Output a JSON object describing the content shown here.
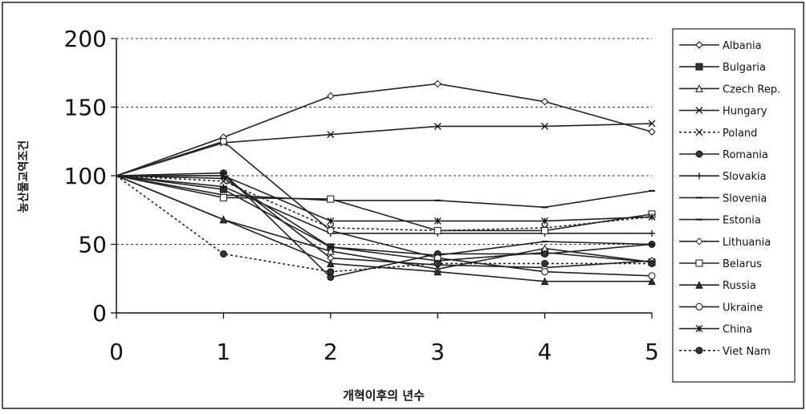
{
  "chart_data": {
    "type": "line",
    "xlabel": "개혁이후의 년수",
    "ylabel": "농산물교역조건",
    "x": [
      0,
      1,
      2,
      3,
      4,
      5
    ],
    "xlim": [
      0,
      5
    ],
    "ylim": [
      0,
      200
    ],
    "yticks": [
      0,
      50,
      100,
      150,
      200
    ],
    "xticks": [
      0,
      1,
      2,
      3,
      4,
      5
    ],
    "grid": "horizontal dashed",
    "legend_position": "right",
    "series": [
      {
        "name": "Albania",
        "values": [
          100,
          128,
          158,
          167,
          154,
          132
        ],
        "marker": "diamond",
        "dash": false
      },
      {
        "name": "Bulgaria",
        "values": [
          100,
          90,
          48,
          38,
          44,
          37
        ],
        "marker": "square-filled",
        "dash": false
      },
      {
        "name": "Czech Rep.",
        "values": [
          100,
          68,
          45,
          32,
          47,
          37
        ],
        "marker": "triangle",
        "dash": false
      },
      {
        "name": "Hungary",
        "values": [
          100,
          124,
          130,
          136,
          136,
          138
        ],
        "marker": "x",
        "dash": false
      },
      {
        "name": "Poland",
        "values": [
          100,
          96,
          62,
          60,
          62,
          70
        ],
        "marker": "x",
        "dash": true
      },
      {
        "name": "Romania",
        "values": [
          100,
          102,
          26,
          43,
          43,
          50
        ],
        "marker": "circle-filled",
        "dash": false
      },
      {
        "name": "Slovakia",
        "values": [
          100,
          92,
          58,
          58,
          58,
          58
        ],
        "marker": "plus",
        "dash": false
      },
      {
        "name": "Slovenia",
        "values": [
          100,
          86,
          82,
          82,
          77,
          89
        ],
        "marker": "dash",
        "dash": false
      },
      {
        "name": "Estonia",
        "values": [
          100,
          98,
          48,
          42,
          52,
          50
        ],
        "marker": "dash",
        "dash": false
      },
      {
        "name": "Lithuania",
        "values": [
          100,
          100,
          40,
          35,
          33,
          38
        ],
        "marker": "diamond",
        "dash": false
      },
      {
        "name": "Belarus",
        "values": [
          100,
          84,
          83,
          60,
          60,
          72
        ],
        "marker": "square",
        "dash": false
      },
      {
        "name": "Russia",
        "values": [
          100,
          68,
          36,
          30,
          23,
          23
        ],
        "marker": "triangle-filled",
        "dash": false
      },
      {
        "name": "Ukraine",
        "values": [
          100,
          125,
          60,
          40,
          30,
          27
        ],
        "marker": "circle",
        "dash": false
      },
      {
        "name": "China",
        "values": [
          100,
          100,
          67,
          67,
          67,
          70
        ],
        "marker": "asterisk",
        "dash": false
      },
      {
        "name": "Viet Nam",
        "values": [
          100,
          43,
          30,
          36,
          36,
          36
        ],
        "marker": "circle-filled",
        "dash": true
      }
    ]
  }
}
